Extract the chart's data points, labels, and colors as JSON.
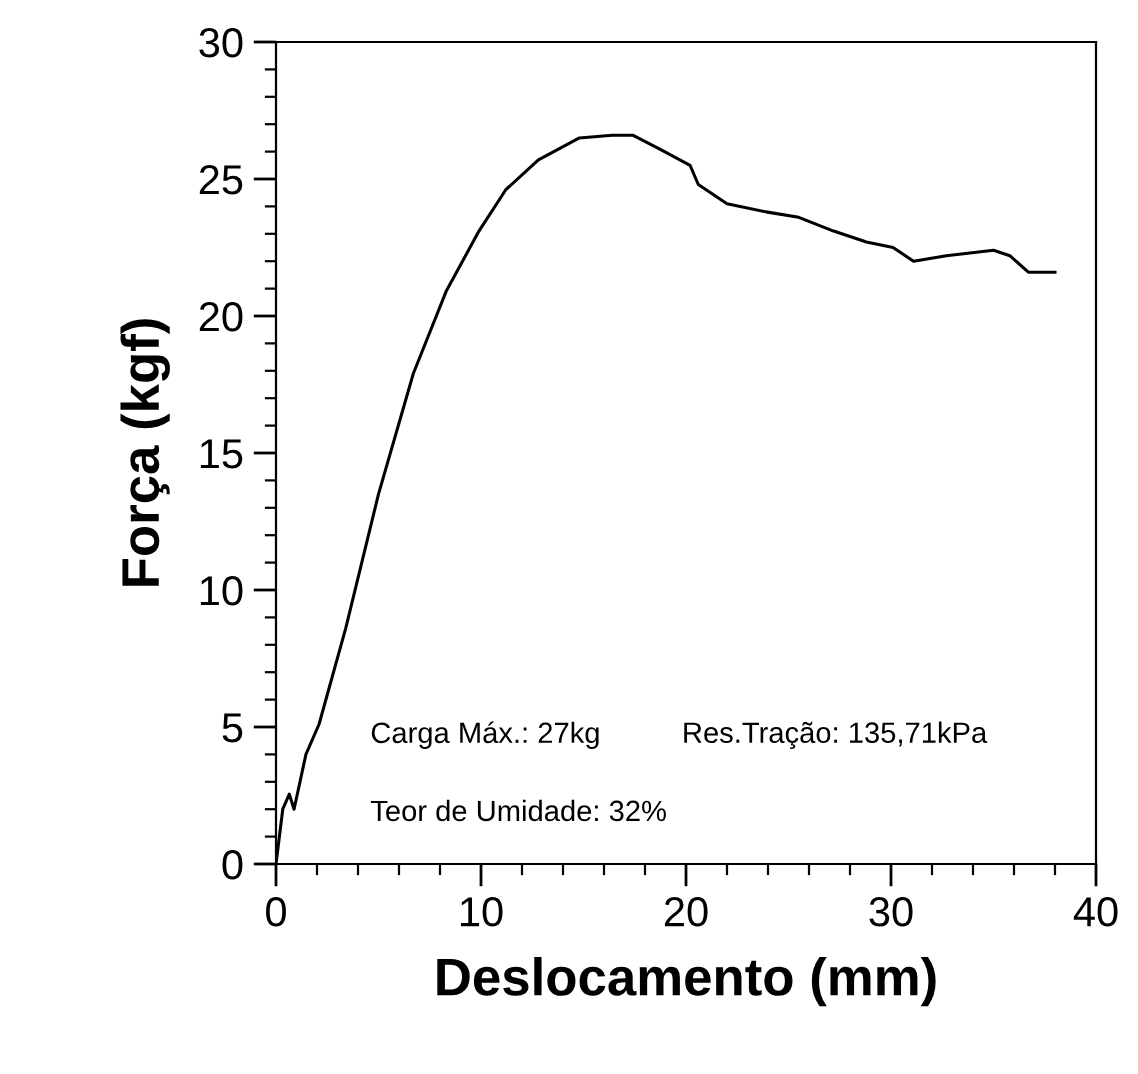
{
  "chart_data": {
    "type": "line",
    "xlabel": "Deslocamento (mm)",
    "ylabel": "Força (kgf)",
    "x": [
      0,
      0.33,
      0.65,
      0.88,
      1.46,
      2.1,
      3.4,
      5.0,
      6.7,
      8.3,
      9.9,
      11.2,
      12.8,
      14.8,
      16.4,
      17.4,
      18.7,
      20.2,
      20.6,
      22.0,
      23.9,
      25.5,
      27.2,
      28.8,
      30.1,
      31.1,
      32.7,
      35.0,
      35.8,
      36.7,
      38.0
    ],
    "series": [
      {
        "color": "#000000",
        "values": [
          0,
          2.0,
          2.55,
          2.0,
          4.0,
          5.1,
          8.6,
          13.5,
          17.9,
          20.9,
          23.1,
          24.6,
          25.7,
          26.5,
          26.6,
          26.6,
          26.1,
          25.5,
          24.8,
          24.1,
          23.8,
          23.6,
          23.1,
          22.7,
          22.5,
          22.0,
          22.2,
          22.4,
          22.2,
          21.6,
          21.6
        ]
      }
    ],
    "xlim": [
      0,
      40
    ],
    "xticks": [
      0,
      10,
      20,
      30,
      40
    ],
    "ylim": [
      0,
      30
    ],
    "yticks": [
      0,
      5,
      10,
      15,
      20,
      25,
      30
    ],
    "grid": false,
    "marker": "none",
    "line_style": "solid",
    "annotations": [
      "Carga Máx.: 27kg",
      "Res.Tração: 135,71kPa",
      "Teor de Umidade: 32%"
    ]
  }
}
